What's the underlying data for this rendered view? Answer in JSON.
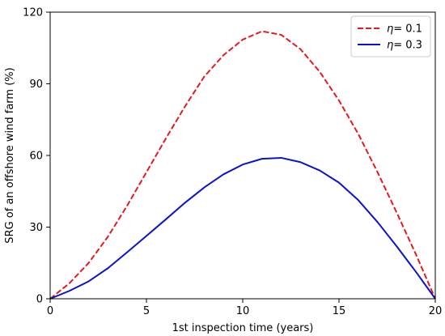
{
  "chart_data": {
    "type": "line",
    "title": "",
    "xlabel": "1st inspection time (years)",
    "ylabel": "SRG of an offshore wind farm (%)",
    "xlim": [
      0,
      20
    ],
    "ylim": [
      0,
      120
    ],
    "xticks": [
      0,
      5,
      10,
      15,
      20
    ],
    "yticks": [
      0,
      30,
      60,
      90,
      120
    ],
    "grid": false,
    "legend_position": "top-right",
    "series": [
      {
        "name": "η= 0.1",
        "legend_symbol": "η",
        "legend_value": "= 0.1",
        "color": "#e41a1c",
        "dash": "dashed",
        "x": [
          0,
          1,
          2,
          3,
          4,
          5,
          6,
          7,
          8,
          9,
          10,
          11,
          12,
          13,
          14,
          15,
          16,
          17,
          18,
          19,
          20
        ],
        "y": [
          0,
          6.5,
          15,
          26,
          39,
          53,
          67,
          80.5,
          93,
          102,
          108.5,
          112,
          110.5,
          104.5,
          95,
          83,
          69,
          53,
          36,
          18.5,
          0
        ]
      },
      {
        "name": "η= 0.3",
        "legend_symbol": "η",
        "legend_value": "= 0.3",
        "color": "#0a12cc",
        "dash": "solid",
        "x": [
          0,
          1,
          2,
          3,
          4,
          5,
          6,
          7,
          8,
          9,
          10,
          11,
          12,
          13,
          14,
          15,
          16,
          17,
          18,
          19,
          20
        ],
        "y": [
          0,
          3.3,
          7.3,
          12.8,
          19.5,
          26.3,
          33.2,
          40.2,
          46.6,
          52.1,
          56.2,
          58.6,
          59,
          57.2,
          53.7,
          48.6,
          41.3,
          32.1,
          21.9,
          11.2,
          0
        ]
      }
    ]
  }
}
